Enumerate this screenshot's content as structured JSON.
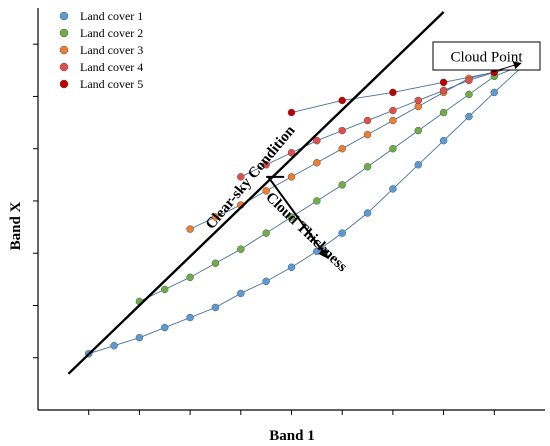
{
  "chart_data": {
    "type": "scatter",
    "title": "",
    "xlabel": "Band 1",
    "ylabel": "Band X",
    "xlim": [
      0,
      100
    ],
    "ylim": [
      0,
      100
    ],
    "xticks": [
      10,
      20,
      30,
      40,
      50,
      60,
      70,
      80,
      90
    ],
    "yticks": [
      13,
      26,
      39,
      52,
      65,
      78,
      91
    ],
    "tick_labels_shown": false,
    "grid": false,
    "legend_position": "top-left",
    "cloud_point": {
      "label": "Cloud Point",
      "x": 96,
      "y": 86
    },
    "annotations": {
      "clear_sky": "Clear-sky Condition",
      "cloud_thickness": "Cloud Thickness"
    },
    "clear_sky_line": {
      "x": [
        6,
        80
      ],
      "y": 9,
      "y_end": 99
    },
    "thickness_arrow": {
      "x": [
        45,
        57
      ],
      "y": [
        58,
        38
      ]
    },
    "series": [
      {
        "name": "Land cover 1",
        "color": "#5b9bd5",
        "x": [
          10,
          15,
          20,
          25,
          30,
          35,
          40,
          45,
          50,
          55,
          60,
          65,
          70,
          75,
          80,
          85,
          90
        ],
        "y": [
          14,
          16,
          18,
          20.5,
          23,
          25.5,
          29,
          32,
          35.5,
          39.5,
          44,
          49,
          55,
          61,
          67,
          73,
          79
        ]
      },
      {
        "name": "Land cover 2",
        "color": "#70ad47",
        "x": [
          20,
          25,
          30,
          35,
          40,
          45,
          50,
          55,
          60,
          65,
          70,
          75,
          80,
          85,
          90
        ],
        "y": [
          27,
          30,
          33,
          36.5,
          40,
          44,
          48,
          52,
          56,
          60.5,
          65,
          69.5,
          74,
          78.5,
          83
        ]
      },
      {
        "name": "Land cover 3",
        "color": "#ed7d31",
        "x": [
          30,
          35,
          40,
          45,
          50,
          55,
          60,
          65,
          70,
          75,
          80,
          85
        ],
        "y": [
          45,
          48,
          51,
          54.5,
          58,
          61.5,
          65,
          68.5,
          72,
          75.5,
          79,
          82.5
        ]
      },
      {
        "name": "Land cover 4",
        "color": "#e0504a",
        "x": [
          40,
          45,
          50,
          55,
          60,
          65,
          70,
          75,
          80,
          85,
          90
        ],
        "y": [
          58,
          61,
          64,
          67,
          69.5,
          72,
          74.5,
          77,
          79.5,
          82,
          84
        ]
      },
      {
        "name": "Land cover 5",
        "color": "#c00000",
        "x": [
          50,
          60,
          70,
          80,
          90
        ],
        "y": [
          74,
          77,
          79,
          81.5,
          84
        ]
      }
    ]
  }
}
